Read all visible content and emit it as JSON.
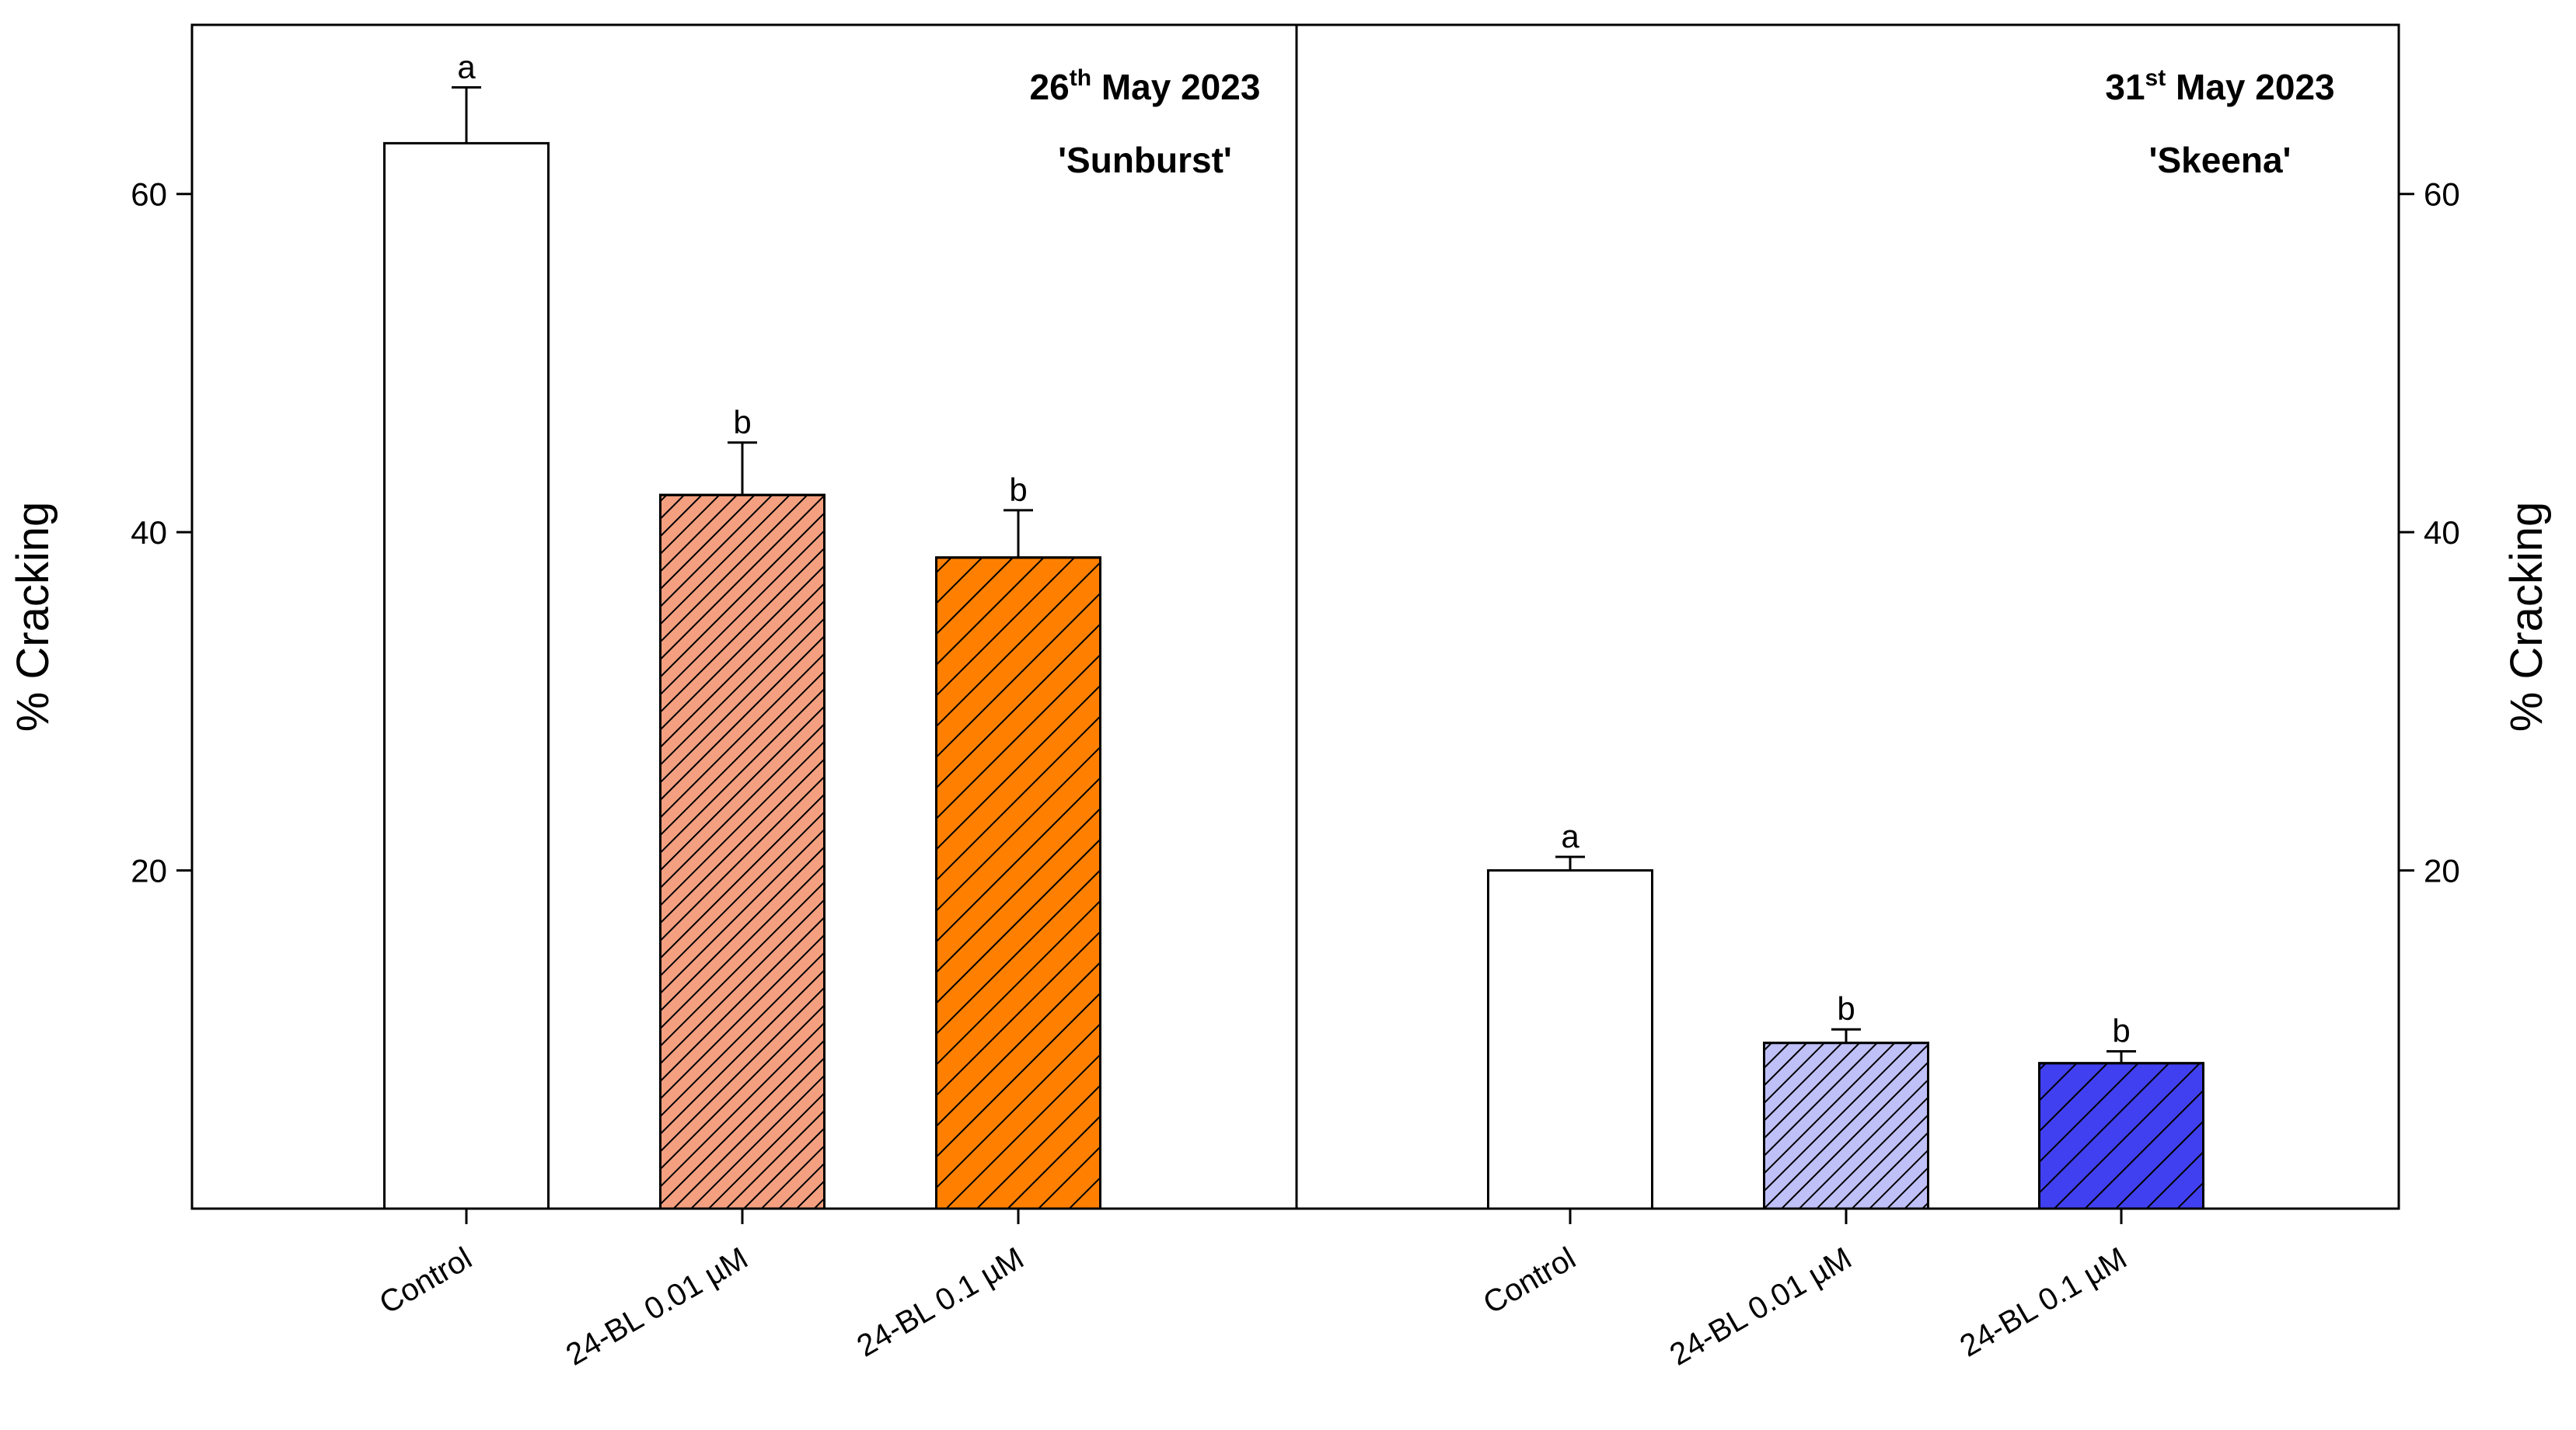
{
  "chart_data": [
    {
      "type": "bar",
      "title": {
        "day": "26",
        "suffix": "th",
        "rest": " May 2023"
      },
      "subtitle": "'Sunburst'",
      "ylabel": "% Cracking",
      "axis_side": "left",
      "categories": [
        "Control",
        "24-BL 0.01 µM",
        "24-BL 0.1 µM"
      ],
      "values": [
        63,
        42.2,
        38.5
      ],
      "errors": [
        3.3,
        3.1,
        2.8
      ],
      "letters": [
        "a",
        "b",
        "b"
      ],
      "colors": [
        "#ffffff",
        "#f4a080",
        "#ff8000"
      ],
      "hatch": [
        null,
        "dense",
        "sparse"
      ],
      "ylim": [
        0,
        70
      ],
      "yticks": [
        20,
        40,
        60
      ]
    },
    {
      "type": "bar",
      "title": {
        "day": "31",
        "suffix": "st",
        "rest": " May 2023"
      },
      "subtitle": "'Skeena'",
      "ylabel": "% Cracking",
      "axis_side": "right",
      "categories": [
        "Control",
        "24-BL 0.01 µM",
        "24-BL 0.1 µM"
      ],
      "values": [
        20,
        9.8,
        8.6
      ],
      "errors": [
        0.8,
        0.8,
        0.7
      ],
      "letters": [
        "a",
        "b",
        "b"
      ],
      "colors": [
        "#ffffff",
        "#c0c0f8",
        "#4040f0"
      ],
      "hatch": [
        null,
        "dense",
        "sparse"
      ],
      "ylim": [
        0,
        70
      ],
      "yticks": [
        20,
        40,
        60
      ]
    }
  ]
}
